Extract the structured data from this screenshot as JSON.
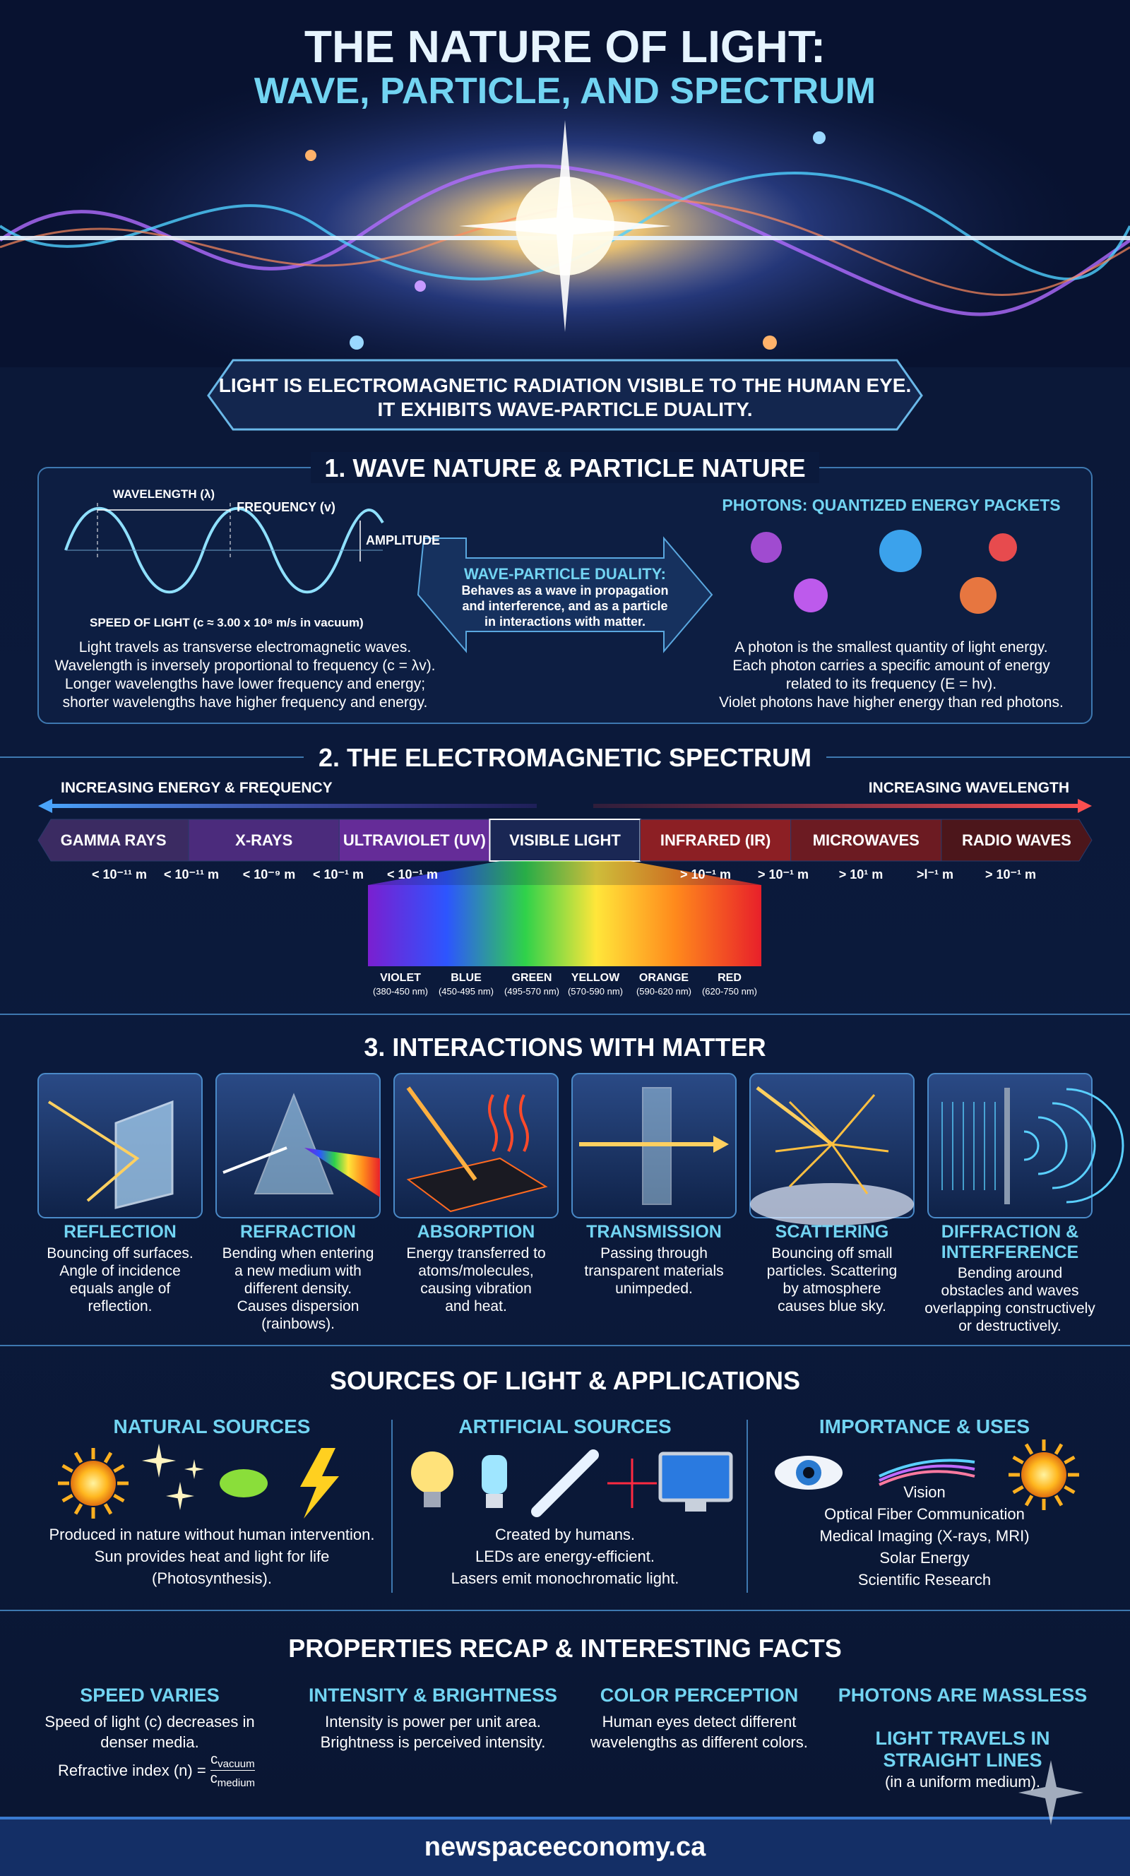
{
  "header": {
    "title_line1": "THE NATURE OF LIGHT:",
    "title_line2": "WAVE, PARTICLE, AND SPECTRUM"
  },
  "banner": [
    "LIGHT IS ELECTROMAGNETIC RADIATION VISIBLE TO THE HUMAN EYE.",
    "IT EXHIBITS WAVE-PARTICLE DUALITY."
  ],
  "section1": {
    "title": "1. WAVE NATURE & PARTICLE NATURE",
    "wave_labels": {
      "wavelength": "WAVELENGTH (λ)",
      "frequency": "FREQUENCY (v)",
      "amplitude": "AMPLITUDE",
      "speed": "SPEED OF LIGHT (c ≈ 3.00 x 10⁸ m/s in vacuum)"
    },
    "wave_text": [
      "Light travels as transverse electromagnetic waves.",
      "Wavelength is inversely proportional to frequency (c = λv).",
      "Longer wavelengths have lower frequency and energy;",
      "shorter wavelengths have higher frequency and energy."
    ],
    "duality": {
      "title": "WAVE-PARTICLE DUALITY:",
      "text": [
        "Behaves as a wave in propagation",
        "and interference, and as a particle",
        "in interactions with matter."
      ]
    },
    "photons": {
      "title": "PHOTONS: QUANTIZED ENERGY PACKETS",
      "text": [
        "A photon is the smallest quantity of light energy.",
        "Each photon carries a specific amount of energy",
        "related to its frequency (E = hv).",
        "Violet photons have higher energy than red photons."
      ]
    }
  },
  "section2": {
    "title": "2. THE ELECTROMAGNETIC SPECTRUM",
    "left_arrow": "INCREASING ENERGY & FREQUENCY",
    "right_arrow": "INCREASING WAVELENGTH",
    "bands": [
      {
        "name": "GAMMA RAYS",
        "color": "#3b2b62"
      },
      {
        "name": "X-RAYS",
        "color": "#4b2b7c"
      },
      {
        "name": "ULTRAVIOLET (UV)",
        "color": "#652c98"
      },
      {
        "name": "VISIBLE LIGHT",
        "color": "#1a2754"
      },
      {
        "name": "INFRARED (IR)",
        "color": "#8c1f24"
      },
      {
        "name": "MICROWAVES",
        "color": "#6c1b22"
      },
      {
        "name": "RADIO WAVES",
        "color": "#4c161b"
      }
    ],
    "wavelengths": [
      "< 10⁻¹¹ m",
      "< 10⁻¹¹ m",
      "< 10⁻⁹ m",
      "< 10⁻¹ m",
      "< 10⁻¹ m",
      "> 10⁻¹ m",
      "> 10⁻¹ m",
      "> 10¹ m",
      ">l⁻¹ m",
      "> 10⁻¹ m"
    ],
    "visible": [
      {
        "name": "VIOLET",
        "range": "(380-450 nm)"
      },
      {
        "name": "BLUE",
        "range": "(450-495 nm)"
      },
      {
        "name": "GREEN",
        "range": "(495-570 nm)"
      },
      {
        "name": "YELLOW",
        "range": "(570-590 nm)"
      },
      {
        "name": "ORANGE",
        "range": "(590-620 nm)"
      },
      {
        "name": "RED",
        "range": "(620-750 nm)"
      }
    ]
  },
  "section3": {
    "title": "3. INTERACTIONS WITH MATTER",
    "items": [
      {
        "name": "REFLECTION",
        "text": [
          "Bouncing off surfaces.",
          "Angle of incidence",
          "equals angle of",
          "reflection."
        ]
      },
      {
        "name": "REFRACTION",
        "text": [
          "Bending when entering",
          "a new medium with",
          "different density.",
          "Causes dispersion",
          "(rainbows)."
        ]
      },
      {
        "name": "ABSORPTION",
        "text": [
          "Energy transferred to",
          "atoms/molecules,",
          "causing vibration",
          "and heat."
        ]
      },
      {
        "name": "TRANSMISSION",
        "text": [
          "Passing through",
          "transparent materials",
          "unimpeded."
        ]
      },
      {
        "name": "SCATTERING",
        "text": [
          "Bouncing off small",
          "particles. Scattering",
          "by atmosphere",
          "causes blue sky."
        ]
      },
      {
        "name": "DIFFRACTION & INTERFERENCE",
        "text": [
          "Bending around",
          "obstacles and waves",
          "overlapping constructively",
          "or destructively."
        ]
      }
    ]
  },
  "sources": {
    "title": "SOURCES OF LIGHT & APPLICATIONS",
    "columns": [
      {
        "heading": "NATURAL SOURCES",
        "text": [
          "Produced in nature without human intervention.",
          "Sun provides heat and light for life",
          "(Photosynthesis)."
        ]
      },
      {
        "heading": "ARTIFICIAL SOURCES",
        "text": [
          "Created by humans.",
          "LEDs are energy-efficient.",
          "Lasers emit monochromatic light."
        ]
      },
      {
        "heading": "IMPORTANCE & USES",
        "text": [
          "Vision",
          "Optical Fiber Communication",
          "Medical Imaging (X-rays, MRI)",
          "Solar Energy",
          "Scientific Research"
        ]
      }
    ]
  },
  "facts": {
    "title": "PROPERTIES RECAP & INTERESTING FACTS",
    "items": [
      {
        "heading": "SPEED VARIES",
        "text": [
          "Speed of light (c) decreases in",
          "denser media."
        ]
      },
      {
        "heading": "INTENSITY & BRIGHTNESS",
        "text": [
          "Intensity is power per unit area.",
          "Brightness is perceived intensity."
        ]
      },
      {
        "heading": "COLOR PERCEPTION",
        "text": [
          "Human eyes detect different",
          "wavelengths as different colors."
        ]
      },
      {
        "heading": "PHOTONS ARE MASSLESS",
        "text": []
      }
    ],
    "formula": {
      "prefix": "Refractive index (n) =",
      "numerator": "c",
      "numerator_sub": "vacuum",
      "denominator": "c",
      "denominator_sub": "medium"
    },
    "straight_lines": {
      "heading": "LIGHT TRAVELS IN STRAIGHT LINES",
      "text": "(in a uniform medium)."
    }
  },
  "footer": "newspaceeconomy.ca"
}
